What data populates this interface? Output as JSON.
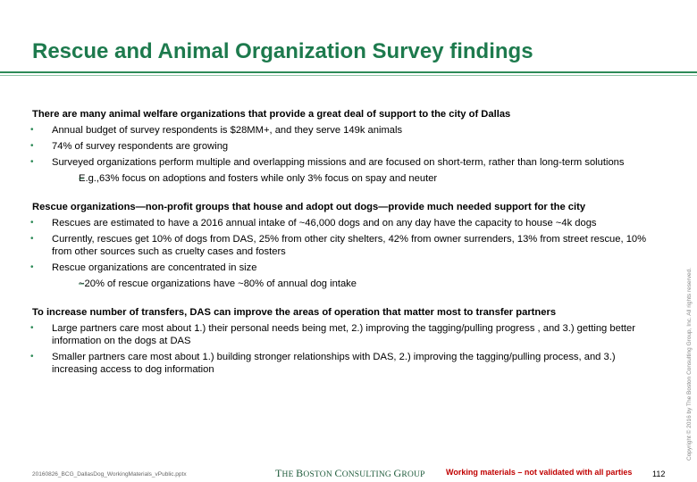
{
  "title": "Rescue and Animal Organization Survey findings",
  "sections": [
    {
      "heading": "There are many animal welfare organizations that provide a great deal of support to the city of Dallas",
      "bullets": [
        "Annual budget of survey respondents is $28MM+, and they serve 149k animals",
        "74% of survey respondents are growing",
        "Surveyed organizations perform multiple and overlapping missions and are focused on short-term, rather than long-term solutions"
      ],
      "sub": "E.g.,63% focus on adoptions and fosters while only 3% focus on spay and neuter"
    },
    {
      "heading": "Rescue organizations—non-profit groups that house and adopt out dogs—provide much needed support for the city",
      "bullets": [
        "Rescues are estimated to have a 2016 annual intake of ~46,000 dogs and on any day have the capacity to house  ~4k dogs",
        "Currently, rescues get 10% of dogs from DAS, 25% from other city shelters, 42% from owner surrenders, 13% from street rescue, 10% from other sources such as cruelty cases and fosters",
        "Rescue organizations are concentrated in size"
      ],
      "sub": "~20% of rescue organizations have ~80% of annual dog intake"
    },
    {
      "heading": "To increase number of transfers, DAS can improve the areas of operation that matter most to transfer partners",
      "bullets": [
        "Large partners care most about 1.) their personal needs being met, 2.) improving the tagging/pulling progress , and 3.) getting better information on the dogs at DAS",
        "Smaller partners care most about 1.) building stronger relationships with DAS, 2.) improving the tagging/pulling process, and 3.) increasing access to dog information"
      ]
    }
  ],
  "footer": {
    "file": "20160826_BCG_DallasDog_WorkingMaterials_vPublic.pptx",
    "logo_the": "T",
    "logo_he": "HE ",
    "logo_b": "B",
    "logo_oston": "OSTON ",
    "logo_c": "C",
    "logo_onsulting": "ONSULTING ",
    "logo_g": "G",
    "logo_roup": "ROUP",
    "note": "Working materials – not validated with all parties",
    "page": "112"
  },
  "copyright": "Copyright © 2016 by The Boston Consulting Group, Inc. All rights reserved.",
  "colors": {
    "title": "#1d7a4d",
    "bullet": "#2d8a57",
    "note": "#c00000"
  }
}
